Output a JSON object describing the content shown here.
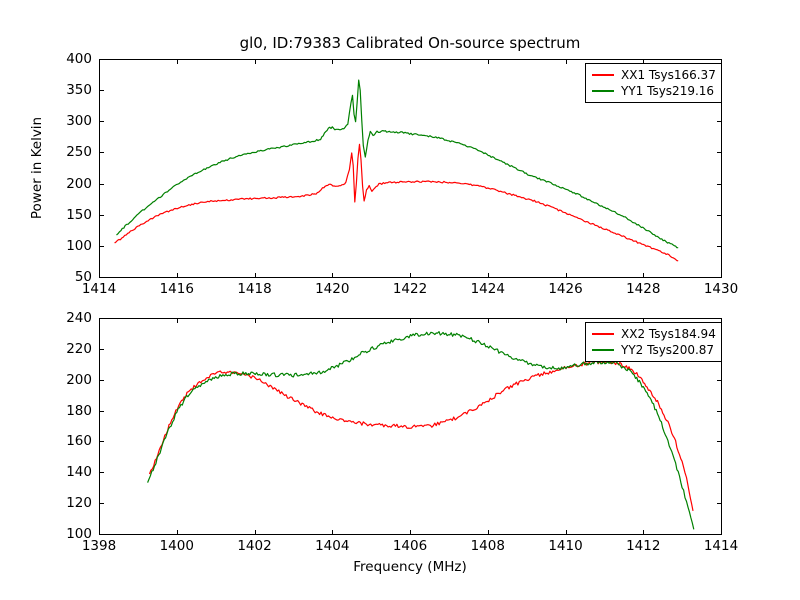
{
  "figure": {
    "background": "#ffffff",
    "text_color": "#000000"
  },
  "chart_data": [
    {
      "type": "line",
      "title": "gl0, ID:79383 Calibrated On-source spectrum",
      "xlabel": "",
      "ylabel": "Power in Kelvin",
      "xlim": [
        1414,
        1430
      ],
      "ylim": [
        50,
        400
      ],
      "xticks": [
        1414,
        1416,
        1418,
        1420,
        1422,
        1424,
        1426,
        1428,
        1430
      ],
      "yticks": [
        50,
        100,
        150,
        200,
        250,
        300,
        350,
        400
      ],
      "grid": false,
      "legend": {
        "position": "upper right",
        "entries": [
          {
            "label": "XX1 Tsys166.37",
            "color": "#ff0000"
          },
          {
            "label": "YY1 Tsys219.16",
            "color": "#008000"
          }
        ]
      },
      "series": [
        {
          "name": "XX1 Tsys166.37",
          "color": "#ff0000",
          "noise_amplitude": 1.3,
          "points": [
            [
              1414.4,
              104
            ],
            [
              1414.7,
              118
            ],
            [
              1415.0,
              131
            ],
            [
              1415.3,
              142
            ],
            [
              1415.6,
              151
            ],
            [
              1415.9,
              158
            ],
            [
              1416.2,
              164
            ],
            [
              1416.5,
              168
            ],
            [
              1416.8,
              171
            ],
            [
              1417.1,
              173
            ],
            [
              1417.4,
              174
            ],
            [
              1417.7,
              175
            ],
            [
              1418.0,
              176
            ],
            [
              1418.3,
              177
            ],
            [
              1418.6,
              177.5
            ],
            [
              1418.9,
              178.5
            ],
            [
              1419.2,
              180
            ],
            [
              1419.45,
              182
            ],
            [
              1419.65,
              185
            ],
            [
              1419.75,
              193
            ],
            [
              1419.85,
              197
            ],
            [
              1419.95,
              198
            ],
            [
              1420.05,
              195
            ],
            [
              1420.15,
              196
            ],
            [
              1420.25,
              197
            ],
            [
              1420.35,
              202
            ],
            [
              1420.44,
              222
            ],
            [
              1420.5,
              248
            ],
            [
              1420.54,
              228
            ],
            [
              1420.58,
              170
            ],
            [
              1420.62,
              200
            ],
            [
              1420.66,
              240
            ],
            [
              1420.7,
              263
            ],
            [
              1420.74,
              238
            ],
            [
              1420.78,
              196
            ],
            [
              1420.82,
              172
            ],
            [
              1420.88,
              190
            ],
            [
              1420.95,
              196
            ],
            [
              1421.02,
              188
            ],
            [
              1421.1,
              194
            ],
            [
              1421.2,
              199
            ],
            [
              1421.35,
              201
            ],
            [
              1421.6,
              202
            ],
            [
              1422.0,
              203
            ],
            [
              1422.4,
              203
            ],
            [
              1422.8,
              202.5
            ],
            [
              1423.2,
              201
            ],
            [
              1423.6,
              198
            ],
            [
              1424.0,
              193
            ],
            [
              1424.4,
              186
            ],
            [
              1424.8,
              179
            ],
            [
              1425.2,
              172
            ],
            [
              1425.6,
              163
            ],
            [
              1426.0,
              153
            ],
            [
              1426.4,
              142
            ],
            [
              1426.8,
              132
            ],
            [
              1427.2,
              122
            ],
            [
              1427.6,
              112
            ],
            [
              1428.0,
              102
            ],
            [
              1428.4,
              92
            ],
            [
              1428.7,
              84
            ],
            [
              1428.9,
              76
            ]
          ]
        },
        {
          "name": "YY1 Tsys219.16",
          "color": "#008000",
          "noise_amplitude": 1.3,
          "points": [
            [
              1414.45,
              118
            ],
            [
              1414.75,
              136
            ],
            [
              1415.05,
              153
            ],
            [
              1415.35,
              168
            ],
            [
              1415.65,
              182
            ],
            [
              1415.95,
              196
            ],
            [
              1416.25,
              208
            ],
            [
              1416.55,
              218
            ],
            [
              1416.85,
              227
            ],
            [
              1417.15,
              235
            ],
            [
              1417.45,
              242
            ],
            [
              1417.75,
              247
            ],
            [
              1418.05,
              251
            ],
            [
              1418.35,
              255
            ],
            [
              1418.65,
              258
            ],
            [
              1418.95,
              262
            ],
            [
              1419.25,
              265
            ],
            [
              1419.5,
              268
            ],
            [
              1419.7,
              271
            ],
            [
              1419.8,
              281
            ],
            [
              1419.9,
              289
            ],
            [
              1420.0,
              290
            ],
            [
              1420.1,
              286
            ],
            [
              1420.2,
              287
            ],
            [
              1420.3,
              289
            ],
            [
              1420.4,
              296
            ],
            [
              1420.48,
              330
            ],
            [
              1420.52,
              342
            ],
            [
              1420.56,
              312
            ],
            [
              1420.6,
              300
            ],
            [
              1420.64,
              330
            ],
            [
              1420.68,
              365
            ],
            [
              1420.72,
              350
            ],
            [
              1420.76,
              300
            ],
            [
              1420.8,
              262
            ],
            [
              1420.85,
              242
            ],
            [
              1420.92,
              270
            ],
            [
              1420.98,
              284
            ],
            [
              1421.05,
              276
            ],
            [
              1421.15,
              283
            ],
            [
              1421.3,
              284
            ],
            [
              1421.5,
              283
            ],
            [
              1421.8,
              282
            ],
            [
              1422.1,
              279
            ],
            [
              1422.4,
              277
            ],
            [
              1422.7,
              274
            ],
            [
              1423.0,
              269
            ],
            [
              1423.3,
              264
            ],
            [
              1423.6,
              257
            ],
            [
              1423.9,
              249
            ],
            [
              1424.2,
              240
            ],
            [
              1424.5,
              231
            ],
            [
              1424.8,
              222
            ],
            [
              1425.1,
              213
            ],
            [
              1425.4,
              206
            ],
            [
              1425.7,
              199
            ],
            [
              1426.0,
              191
            ],
            [
              1426.3,
              183
            ],
            [
              1426.6,
              174
            ],
            [
              1426.9,
              165
            ],
            [
              1427.2,
              156
            ],
            [
              1427.5,
              147
            ],
            [
              1427.8,
              136
            ],
            [
              1428.1,
              125
            ],
            [
              1428.4,
              113
            ],
            [
              1428.7,
              103
            ],
            [
              1428.9,
              97
            ]
          ]
        }
      ]
    },
    {
      "type": "line",
      "title": "",
      "xlabel": "Frequency (MHz)",
      "ylabel": "",
      "xlim": [
        1398,
        1414
      ],
      "ylim": [
        100,
        240
      ],
      "xticks": [
        1398,
        1400,
        1402,
        1404,
        1406,
        1408,
        1410,
        1412,
        1414
      ],
      "yticks": [
        100,
        120,
        140,
        160,
        180,
        200,
        220,
        240
      ],
      "grid": false,
      "legend": {
        "position": "upper right",
        "entries": [
          {
            "label": "XX2 Tsys184.94",
            "color": "#ff0000"
          },
          {
            "label": "YY2 Tsys200.87",
            "color": "#008000"
          }
        ]
      },
      "series": [
        {
          "name": "XX2 Tsys184.94",
          "color": "#ff0000",
          "noise_amplitude": 1.2,
          "points": [
            [
              1399.3,
              138
            ],
            [
              1399.55,
              154
            ],
            [
              1399.8,
              170
            ],
            [
              1400.05,
              183
            ],
            [
              1400.3,
              192
            ],
            [
              1400.55,
              198
            ],
            [
              1400.8,
              202
            ],
            [
              1401.05,
              204.5
            ],
            [
              1401.3,
              205
            ],
            [
              1401.55,
              205
            ],
            [
              1401.8,
              203.5
            ],
            [
              1402.1,
              200
            ],
            [
              1402.4,
              196
            ],
            [
              1402.7,
              191
            ],
            [
              1403.0,
              187
            ],
            [
              1403.3,
              183
            ],
            [
              1403.6,
              179
            ],
            [
              1403.9,
              176
            ],
            [
              1404.2,
              174
            ],
            [
              1404.5,
              172.5
            ],
            [
              1404.8,
              171.5
            ],
            [
              1405.1,
              171
            ],
            [
              1405.4,
              170.5
            ],
            [
              1405.7,
              170
            ],
            [
              1406.0,
              169.5
            ],
            [
              1406.3,
              169.5
            ],
            [
              1406.6,
              170.5
            ],
            [
              1406.9,
              172.5
            ],
            [
              1407.2,
              175.5
            ],
            [
              1407.5,
              179
            ],
            [
              1407.8,
              183
            ],
            [
              1408.1,
              188
            ],
            [
              1408.4,
              193
            ],
            [
              1408.7,
              197
            ],
            [
              1409.0,
              200
            ],
            [
              1409.3,
              203
            ],
            [
              1409.6,
              205
            ],
            [
              1409.9,
              207
            ],
            [
              1410.2,
              209
            ],
            [
              1410.5,
              210.5
            ],
            [
              1410.8,
              211.5
            ],
            [
              1411.1,
              211.5
            ],
            [
              1411.4,
              210
            ],
            [
              1411.6,
              208
            ],
            [
              1411.8,
              204.5
            ],
            [
              1412.0,
              199
            ],
            [
              1412.2,
              192
            ],
            [
              1412.4,
              184
            ],
            [
              1412.6,
              174
            ],
            [
              1412.8,
              162
            ],
            [
              1413.0,
              147
            ],
            [
              1413.15,
              132
            ],
            [
              1413.28,
              115
            ]
          ]
        },
        {
          "name": "YY2 Tsys200.87",
          "color": "#008000",
          "noise_amplitude": 1.2,
          "points": [
            [
              1399.25,
              133
            ],
            [
              1399.5,
              149
            ],
            [
              1399.75,
              165
            ],
            [
              1400.0,
              179
            ],
            [
              1400.25,
              189
            ],
            [
              1400.5,
              195
            ],
            [
              1400.75,
              199
            ],
            [
              1401.0,
              202
            ],
            [
              1401.3,
              203.5
            ],
            [
              1401.6,
              204
            ],
            [
              1401.95,
              204
            ],
            [
              1402.3,
              203.5
            ],
            [
              1402.65,
              203
            ],
            [
              1403.0,
              203
            ],
            [
              1403.35,
              203.5
            ],
            [
              1403.7,
              205
            ],
            [
              1404.05,
              208
            ],
            [
              1404.4,
              212
            ],
            [
              1404.75,
              217
            ],
            [
              1405.1,
              221
            ],
            [
              1405.45,
              224.5
            ],
            [
              1405.8,
              227
            ],
            [
              1406.15,
              229
            ],
            [
              1406.5,
              230
            ],
            [
              1406.85,
              230
            ],
            [
              1407.2,
              229
            ],
            [
              1407.5,
              227
            ],
            [
              1407.8,
              224
            ],
            [
              1408.1,
              220.5
            ],
            [
              1408.4,
              217
            ],
            [
              1408.7,
              213.5
            ],
            [
              1409.0,
              211
            ],
            [
              1409.3,
              209
            ],
            [
              1409.6,
              207.5
            ],
            [
              1409.9,
              207.5
            ],
            [
              1410.2,
              209
            ],
            [
              1410.5,
              210.5
            ],
            [
              1410.8,
              211.5
            ],
            [
              1411.05,
              211.5
            ],
            [
              1411.3,
              210.5
            ],
            [
              1411.55,
              207.5
            ],
            [
              1411.8,
              202
            ],
            [
              1412.0,
              195
            ],
            [
              1412.2,
              187
            ],
            [
              1412.4,
              176
            ],
            [
              1412.6,
              163
            ],
            [
              1412.8,
              148
            ],
            [
              1413.0,
              131
            ],
            [
              1413.15,
              117
            ],
            [
              1413.3,
              103
            ]
          ]
        }
      ]
    }
  ]
}
